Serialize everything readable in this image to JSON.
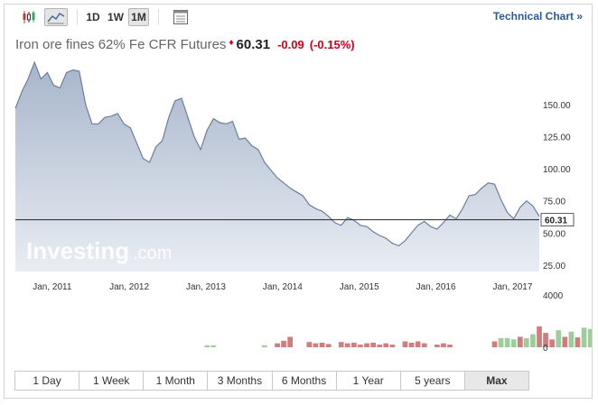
{
  "toolbar": {
    "candle_icon": "candlestick-icon",
    "area_icon": "area-chart-icon",
    "periods": [
      "1D",
      "1W",
      "1M"
    ],
    "active_period": "1M",
    "settings_icon": "chart-settings-icon",
    "technical_link": "Technical Chart »"
  },
  "header": {
    "name": "Iron ore fines 62% Fe CFR Futures",
    "arrow": "♦",
    "price": "60.31",
    "change": "-0.09",
    "change_pct": "(-0.15%)"
  },
  "watermark": {
    "brand": "Investing",
    "suffix": ".com"
  },
  "colors": {
    "line": "#6b7f9d",
    "fill_top": "#a7b5cb",
    "fill_bottom": "#e9edf3",
    "vol_up": "#9ccd9a",
    "vol_down": "#cf7d7d",
    "down": "#d0011b"
  },
  "chart_data": {
    "type": "area",
    "x_ticks": [
      "Jan, 2011",
      "Jan, 2012",
      "Jan, 2013",
      "Jan, 2014",
      "Jan, 2015",
      "Jan, 2016",
      "Jan, 2017"
    ],
    "y_ticks": [
      "150.00",
      "125.00",
      "100.00",
      "75.00",
      "50.00",
      "25.00"
    ],
    "ylim": [
      20,
      183
    ],
    "current_label": "60.31",
    "current_value": 60.31,
    "x_start": "2010-10",
    "series": [
      {
        "values": [
          147,
          160,
          170,
          183,
          170,
          175,
          165,
          163,
          175,
          177,
          176,
          150,
          135,
          135,
          140,
          141,
          143,
          135,
          132,
          120,
          108,
          105,
          117,
          122,
          140,
          153,
          155,
          140,
          125,
          115,
          130,
          139,
          136,
          135,
          137,
          123,
          124,
          118,
          115,
          105,
          99,
          93,
          89,
          85,
          82,
          79,
          72,
          69,
          67,
          63,
          58,
          56,
          62,
          60,
          56,
          55,
          51,
          48,
          46,
          42,
          40,
          44,
          50,
          56,
          59,
          55,
          53,
          58,
          64,
          61,
          69,
          79,
          80,
          85,
          89,
          88,
          76,
          66,
          61,
          70,
          75,
          71,
          63
        ]
      }
    ],
    "volume": {
      "y_ticks": [
        "4000",
        "0"
      ],
      "ylim": [
        0,
        4000
      ],
      "start_index": 25,
      "values": [
        0,
        0,
        0,
        0,
        0,
        150,
        150,
        0,
        0,
        0,
        0,
        0,
        0,
        0,
        150,
        0,
        300,
        500,
        800,
        0,
        0,
        400,
        300,
        350,
        250,
        0,
        400,
        300,
        350,
        200,
        300,
        350,
        200,
        300,
        200,
        0,
        450,
        350,
        450,
        300,
        0,
        200,
        300,
        200,
        0,
        0,
        0,
        0,
        0,
        0,
        450,
        700,
        700,
        600,
        800,
        700,
        1000,
        1600,
        1100,
        600,
        1300,
        800,
        1200,
        750,
        1500,
        1400,
        1700,
        1500,
        2500,
        1600,
        900,
        1300,
        1800,
        1000,
        700,
        700,
        600,
        1400,
        900,
        1500,
        500,
        400,
        200
      ],
      "directions": [
        "d",
        "d",
        "d",
        "d",
        "d",
        "u",
        "u",
        "d",
        "d",
        "d",
        "d",
        "d",
        "d",
        "d",
        "u",
        "d",
        "d",
        "d",
        "d",
        "d",
        "d",
        "d",
        "d",
        "d",
        "d",
        "d",
        "d",
        "d",
        "d",
        "d",
        "d",
        "d",
        "d",
        "d",
        "d",
        "d",
        "d",
        "d",
        "d",
        "d",
        "d",
        "d",
        "d",
        "d",
        "d",
        "d",
        "d",
        "d",
        "d",
        "d",
        "d",
        "u",
        "u",
        "u",
        "d",
        "u",
        "u",
        "d",
        "d",
        "d",
        "u",
        "d",
        "u",
        "d",
        "u",
        "u",
        "u",
        "u",
        "u",
        "d",
        "u",
        "d",
        "u",
        "u",
        "d",
        "d",
        "d",
        "u",
        "d",
        "u",
        "u",
        "u",
        "d"
      ]
    }
  },
  "ranges": [
    "1 Day",
    "1 Week",
    "1 Month",
    "3 Months",
    "6 Months",
    "1 Year",
    "5 years",
    "Max"
  ],
  "active_range": "Max"
}
